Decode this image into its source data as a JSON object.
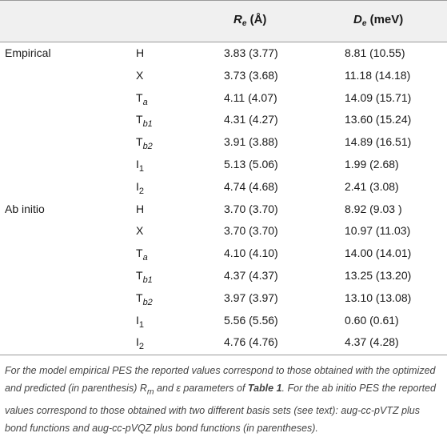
{
  "header": {
    "re_symbol": "R",
    "re_sub": "e",
    "re_unit": "(Å)",
    "de_symbol": "D",
    "de_sub": "e",
    "de_unit": "(meV)"
  },
  "rows": [
    {
      "group": "Empirical",
      "site_main": "H",
      "site_sub": "",
      "site_sub_italic": false,
      "re": "3.83 (3.77)",
      "de": "8.81 (10.55)"
    },
    {
      "group": "",
      "site_main": "X",
      "site_sub": "",
      "site_sub_italic": false,
      "re": "3.73 (3.68)",
      "de": "11.18 (14.18)"
    },
    {
      "group": "",
      "site_main": "T",
      "site_sub": "a",
      "site_sub_italic": true,
      "re": "4.11 (4.07)",
      "de": "14.09 (15.71)"
    },
    {
      "group": "",
      "site_main": "T",
      "site_sub": "b1",
      "site_sub_italic": true,
      "re": "4.31 (4.27)",
      "de": "13.60 (15.24)"
    },
    {
      "group": "",
      "site_main": "T",
      "site_sub": "b2",
      "site_sub_italic": true,
      "re": "3.91 (3.88)",
      "de": "14.89 (16.51)"
    },
    {
      "group": "",
      "site_main": "I",
      "site_sub": "1",
      "site_sub_italic": false,
      "re": "5.13 (5.06)",
      "de": "1.99 (2.68)"
    },
    {
      "group": "",
      "site_main": "I",
      "site_sub": "2",
      "site_sub_italic": false,
      "re": "4.74 (4.68)",
      "de": "2.41 (3.08)"
    },
    {
      "group": "Ab initio",
      "site_main": "H",
      "site_sub": "",
      "site_sub_italic": false,
      "re": "3.70 (3.70)",
      "de": "8.92 (9.03 )"
    },
    {
      "group": "",
      "site_main": "X",
      "site_sub": "",
      "site_sub_italic": false,
      "re": "3.70 (3.70)",
      "de": "10.97 (11.03)"
    },
    {
      "group": "",
      "site_main": "T",
      "site_sub": "a",
      "site_sub_italic": true,
      "re": "4.10 (4.10)",
      "de": "14.00 (14.01)"
    },
    {
      "group": "",
      "site_main": "T",
      "site_sub": "b1",
      "site_sub_italic": true,
      "re": "4.37 (4.37)",
      "de": "13.25 (13.20)"
    },
    {
      "group": "",
      "site_main": "T",
      "site_sub": "b2",
      "site_sub_italic": true,
      "re": "3.97 (3.97)",
      "de": "13.10 (13.08)"
    },
    {
      "group": "",
      "site_main": "I",
      "site_sub": "1",
      "site_sub_italic": false,
      "re": "5.56 (5.56)",
      "de": "0.60 (0.61)"
    },
    {
      "group": "",
      "site_main": "I",
      "site_sub": "2",
      "site_sub_italic": false,
      "re": "4.76 (4.76)",
      "de": "4.37 (4.28)"
    }
  ],
  "footnote": {
    "part1": "For the model empirical PES the reported values correspond to those obtained with the optimized and predicted (in parenthesis) ",
    "rm_symbol": "R",
    "rm_sub": "m",
    "part2": " and ε parameters of ",
    "table_ref": "Table 1",
    "part3": ". For the ab initio PES the reported values correspond to those obtained with two different basis sets (see text): aug-cc-pVTZ plus bond functions and aug-cc-pVQZ plus bond functions (in parentheses)."
  }
}
